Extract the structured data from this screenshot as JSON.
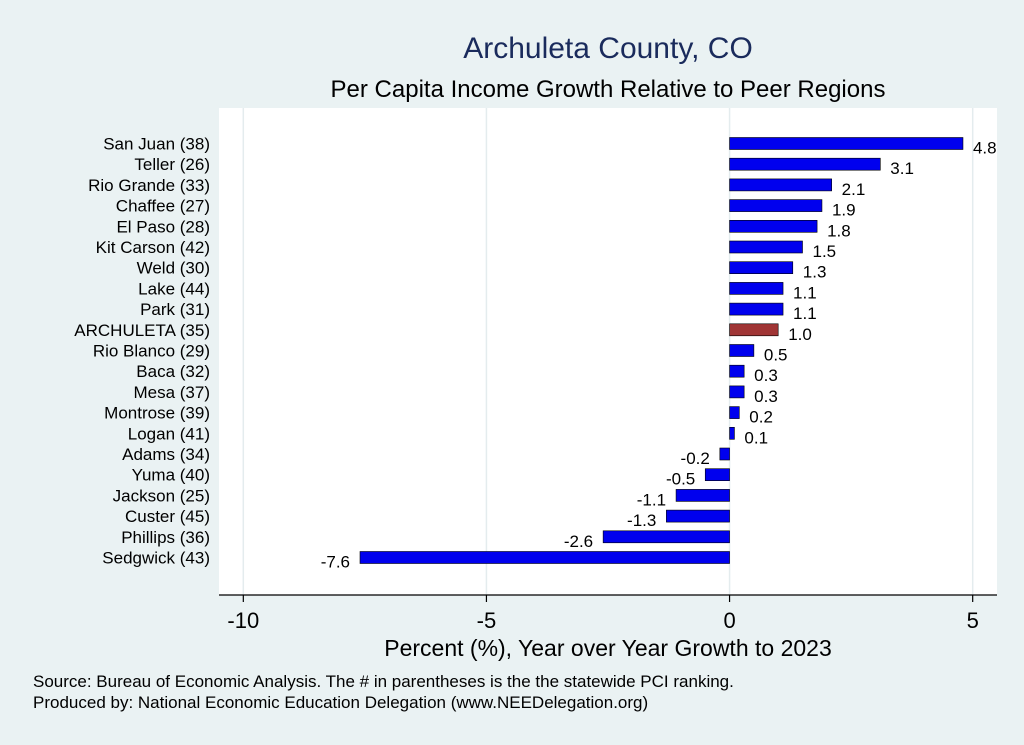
{
  "chart_data": {
    "type": "bar",
    "orientation": "horizontal",
    "title": "Archuleta County, CO",
    "subtitle": "Per Capita Income Growth Relative to Peer Regions",
    "xlabel": "Percent (%), Year over Year Growth to 2023",
    "ylabel": "",
    "xlim": [
      -10.5,
      5.5
    ],
    "xticks": [
      -10,
      -5,
      0,
      5
    ],
    "xtick_labels": [
      "-10",
      "-5",
      "0",
      "5"
    ],
    "grid": "vertical",
    "categories": [
      "San Juan (38)",
      "Teller (26)",
      "Rio Grande (33)",
      "Chaffee (27)",
      "El Paso (28)",
      "Kit Carson (42)",
      "Weld (30)",
      "Lake (44)",
      "Park (31)",
      "ARCHULETA (35)",
      "Rio Blanco (29)",
      "Baca (32)",
      "Mesa (37)",
      "Montrose (39)",
      "Logan (41)",
      "Adams (34)",
      "Yuma (40)",
      "Jackson (25)",
      "Custer (45)",
      "Phillips (36)",
      "Sedgwick (43)"
    ],
    "values": [
      4.8,
      3.1,
      2.1,
      1.9,
      1.8,
      1.5,
      1.3,
      1.1,
      1.1,
      1.0,
      0.5,
      0.3,
      0.3,
      0.2,
      0.1,
      -0.2,
      -0.5,
      -1.1,
      -1.3,
      -2.6,
      -7.6
    ],
    "value_labels": [
      "4.8",
      "3.1",
      "2.1",
      "1.9",
      "1.8",
      "1.5",
      "1.3",
      "1.1",
      "1.1",
      "1.0",
      "0.5",
      "0.3",
      "0.3",
      "0.2",
      "0.1",
      "-0.2",
      "-0.5",
      "-1.1",
      "-1.3",
      "-2.6",
      "-7.6"
    ],
    "highlight_category": "ARCHULETA (35)",
    "colors": {
      "bar": "#0000ee",
      "highlight": "#a03535",
      "background": "#eaf2f3",
      "plot_background": "#ffffff",
      "title": "#1a2b5c",
      "grid": "#e4ecee"
    }
  },
  "footnotes": {
    "source": "Source: Bureau of Economic Analysis. The # in parentheses is the the statewide PCI ranking.",
    "produced_by": "Produced by: National Economic Education Delegation (www.NEEDelegation.org)"
  }
}
